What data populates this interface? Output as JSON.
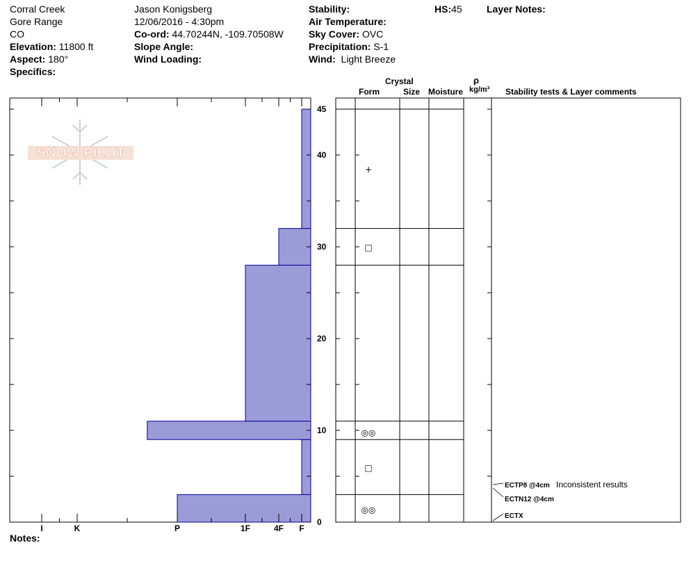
{
  "header": {
    "location": "Corral Creek",
    "range": "Gore Range",
    "state": "CO",
    "elevation_label": "Elevation:",
    "elevation_value": "11800 ft",
    "aspect_label": "Aspect:",
    "aspect_value": "180°",
    "specifics_label": "Specifics:",
    "observer": "Jason Konigsberg",
    "datetime": "12/06/2016 - 4:30pm",
    "coord_label": "Co-ord:",
    "coord_value": "44.70244N, -109.70508W",
    "slope_label": "Slope Angle:",
    "wind_loading_label": "Wind Loading:",
    "stability_label": "Stability:",
    "air_temp_label": "Air Temperature:",
    "sky_label": "Sky Cover:",
    "sky_value": "OVC",
    "precip_label": "Precipitation:",
    "precip_value": "S-1",
    "wind_label": "Wind:",
    "wind_value": "Light Breeze",
    "hs_label": "HS:",
    "hs_value": "45",
    "layer_notes_label": "Layer Notes:"
  },
  "logo_text": "SNOW PILOT",
  "column_headers": {
    "crystal": "Crystal",
    "form": "Form",
    "size": "Size",
    "moisture": "Moisture",
    "rho": "ρ",
    "density_unit": "kg/m³",
    "stability": "Stability tests & Layer comments"
  },
  "notes_label": "Notes:",
  "colors": {
    "hardness_fill": "#9b9bd8",
    "hardness_stroke": "#0000a0"
  },
  "chart_data": {
    "type": "bar",
    "orientation": "horizontal-step",
    "y_axis": {
      "range": [
        0,
        45
      ],
      "major_ticks": [
        0,
        10,
        20,
        30,
        40,
        45
      ],
      "minor_step": 5
    },
    "hardness_scale": [
      {
        "label": "I",
        "value": 0
      },
      {
        "label": "K",
        "value": 1
      },
      {
        "label": "P",
        "value": 2
      },
      {
        "label": "1F",
        "value": 3
      },
      {
        "label": "4F",
        "value": 4
      },
      {
        "label": "F",
        "value": 5
      }
    ],
    "layers": [
      {
        "bottom": 0,
        "top": 3,
        "hardness": 2,
        "grain_form": "mf",
        "grain_glyph": "◎◎"
      },
      {
        "bottom": 3,
        "top": 9,
        "hardness": 5,
        "grain_form": "fc",
        "grain_glyph": "□"
      },
      {
        "bottom": 9,
        "top": 11,
        "hardness": 1.7,
        "grain_form": "mf",
        "grain_glyph": "◎◎"
      },
      {
        "bottom": 11,
        "top": 28,
        "hardness": 3,
        "grain_form": "",
        "grain_glyph": ""
      },
      {
        "bottom": 28,
        "top": 32,
        "hardness": 4,
        "grain_form": "fc",
        "grain_glyph": "□"
      },
      {
        "bottom": 32,
        "top": 45,
        "hardness": 5,
        "grain_form": "pp",
        "grain_glyph": "+"
      }
    ],
    "stability_tests": [
      {
        "depth": 4,
        "label": "ECTP8 @4cm",
        "comment": "Inconsistent results"
      },
      {
        "depth": 2.5,
        "label": "ECTN12 @4cm",
        "comment": ""
      },
      {
        "depth": 0.5,
        "label": "ECTX",
        "comment": ""
      }
    ]
  }
}
